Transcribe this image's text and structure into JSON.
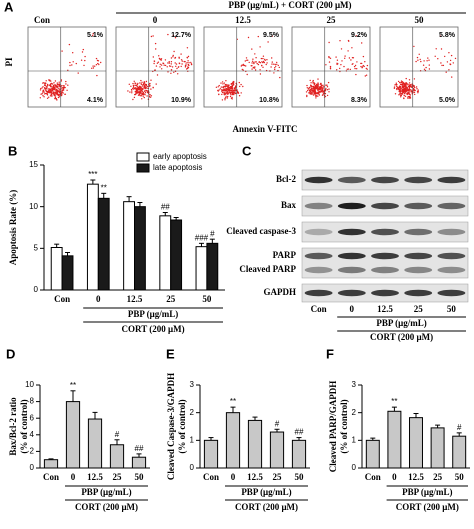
{
  "panel_a": {
    "label": "A",
    "header": "PBP (μg/mL) + CORT (200 μM)",
    "groups": [
      "Con",
      "0",
      "12.5",
      "25",
      "50"
    ],
    "upper_right": [
      "5.1%",
      "12.7%",
      "9.5%",
      "9.2%",
      "5.8%"
    ],
    "lower_right": [
      "4.1%",
      "10.9%",
      "10.8%",
      "8.3%",
      "5.0%"
    ],
    "y_label": "PI",
    "x_label": "Annexin V-FITC"
  },
  "panel_c": {
    "label": "C",
    "bands": [
      "Bcl-2",
      "Bax",
      "Cleaved caspase-3",
      "PARP",
      "Cleaved PARP",
      "GAPDH"
    ],
    "lanes": [
      "Con",
      "0",
      "12.5",
      "25",
      "50"
    ],
    "group_label": "PBP (μg/mL)",
    "treatment_label": "CORT (200 μM)"
  },
  "chart_data": [
    {
      "type": "bar",
      "panel_label": "B",
      "y_label": "Apoptosis Rate (%)",
      "categories": [
        "Con",
        "0",
        "12.5",
        "25",
        "50"
      ],
      "series": [
        {
          "name": "early apoptosis",
          "color": "#ffffff",
          "values": [
            5.1,
            12.7,
            10.6,
            8.9,
            5.2
          ],
          "errors": [
            0.4,
            0.5,
            0.6,
            0.4,
            0.4
          ],
          "significance": [
            null,
            "***",
            null,
            "##",
            "###"
          ]
        },
        {
          "name": "late apoptosis",
          "color": "#1a1a1a",
          "values": [
            4.1,
            11.0,
            10.0,
            8.4,
            5.6
          ],
          "errors": [
            0.4,
            0.6,
            0.5,
            0.3,
            0.5
          ],
          "significance": [
            null,
            "**",
            null,
            null,
            "#"
          ]
        }
      ],
      "ylim": [
        0,
        15
      ],
      "yticks": [
        0,
        5,
        10,
        15
      ],
      "group_label": "PBP (μg/mL)",
      "treatment_label": "CORT (200 μM)"
    },
    {
      "type": "bar",
      "panel_label": "D",
      "y_label": [
        "Bax/Bcl-2 ratio",
        "(% of control)"
      ],
      "categories": [
        "Con",
        "0",
        "12.5",
        "25",
        "50"
      ],
      "color": "#c8c8c8",
      "values": [
        1.0,
        8.0,
        5.9,
        2.8,
        1.3
      ],
      "errors": [
        0.1,
        1.3,
        0.8,
        0.6,
        0.4
      ],
      "significance": [
        null,
        "**",
        null,
        "#",
        "##"
      ],
      "ylim": [
        0,
        10
      ],
      "yticks": [
        0,
        2,
        4,
        6,
        8,
        10
      ],
      "group_label": "PBP (μg/mL)",
      "treatment_label": "CORT (200 μM)"
    },
    {
      "type": "bar",
      "panel_label": "E",
      "y_label": [
        "Cleaved Caspase-3/GAPDH",
        "(% of control)"
      ],
      "categories": [
        "Con",
        "0",
        "12.5",
        "25",
        "50"
      ],
      "color": "#c8c8c8",
      "values": [
        1.0,
        2.0,
        1.72,
        1.3,
        1.0
      ],
      "errors": [
        0.1,
        0.2,
        0.12,
        0.1,
        0.1
      ],
      "significance": [
        null,
        "**",
        null,
        "#",
        "##"
      ],
      "ylim": [
        0,
        3
      ],
      "yticks": [
        0,
        1,
        2,
        3
      ],
      "group_label": "PBP (μg/mL)",
      "treatment_label": "CORT (200 μM)"
    },
    {
      "type": "bar",
      "panel_label": "F",
      "y_label": [
        "Cleaved PARP/GAPDH",
        "(% of control)"
      ],
      "categories": [
        "Con",
        "0",
        "12.5",
        "25",
        "50"
      ],
      "color": "#c8c8c8",
      "values": [
        1.0,
        2.05,
        1.82,
        1.45,
        1.15
      ],
      "errors": [
        0.08,
        0.15,
        0.15,
        0.1,
        0.12
      ],
      "significance": [
        null,
        "**",
        null,
        null,
        "#"
      ],
      "ylim": [
        0,
        3
      ],
      "yticks": [
        0,
        1,
        2,
        3
      ],
      "group_label": "PBP (μg/mL)",
      "treatment_label": "CORT (200 μM)"
    }
  ]
}
